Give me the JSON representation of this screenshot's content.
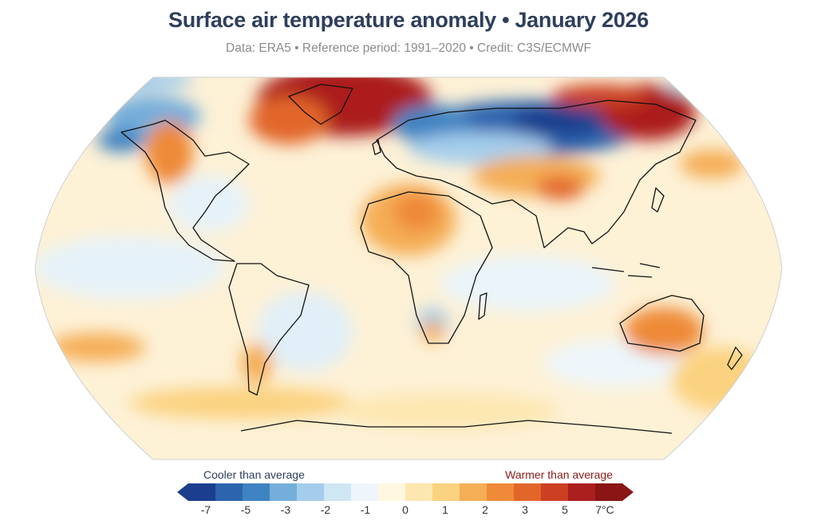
{
  "title": "Surface air temperature anomaly • January 2026",
  "subtitle": "Data: ERA5 • Reference period: 1991–2020 • Credit: C3S/ECMWF",
  "legend": {
    "cool_label": "Cooler than average",
    "warm_label": "Warmer than average",
    "ticks": [
      "-7",
      "-5",
      "-3",
      "-2",
      "-1",
      "0",
      "1",
      "2",
      "3",
      "5",
      "7°C"
    ],
    "colors": [
      "#1b3f8e",
      "#2c64ad",
      "#3f83c2",
      "#74aedb",
      "#a4cdec",
      "#cfe6f5",
      "#eef6fb",
      "#fff7df",
      "#fde7b0",
      "#fbd27f",
      "#f5ae56",
      "#ee8a38",
      "#e2662a",
      "#cc3f23",
      "#ac1f1f",
      "#8b1414"
    ],
    "low_arrow_color": "#1b3f8e",
    "high_arrow_color": "#8b1414"
  },
  "map": {
    "ocean_base": "#fdf1d6",
    "coast_color": "#111111"
  }
}
